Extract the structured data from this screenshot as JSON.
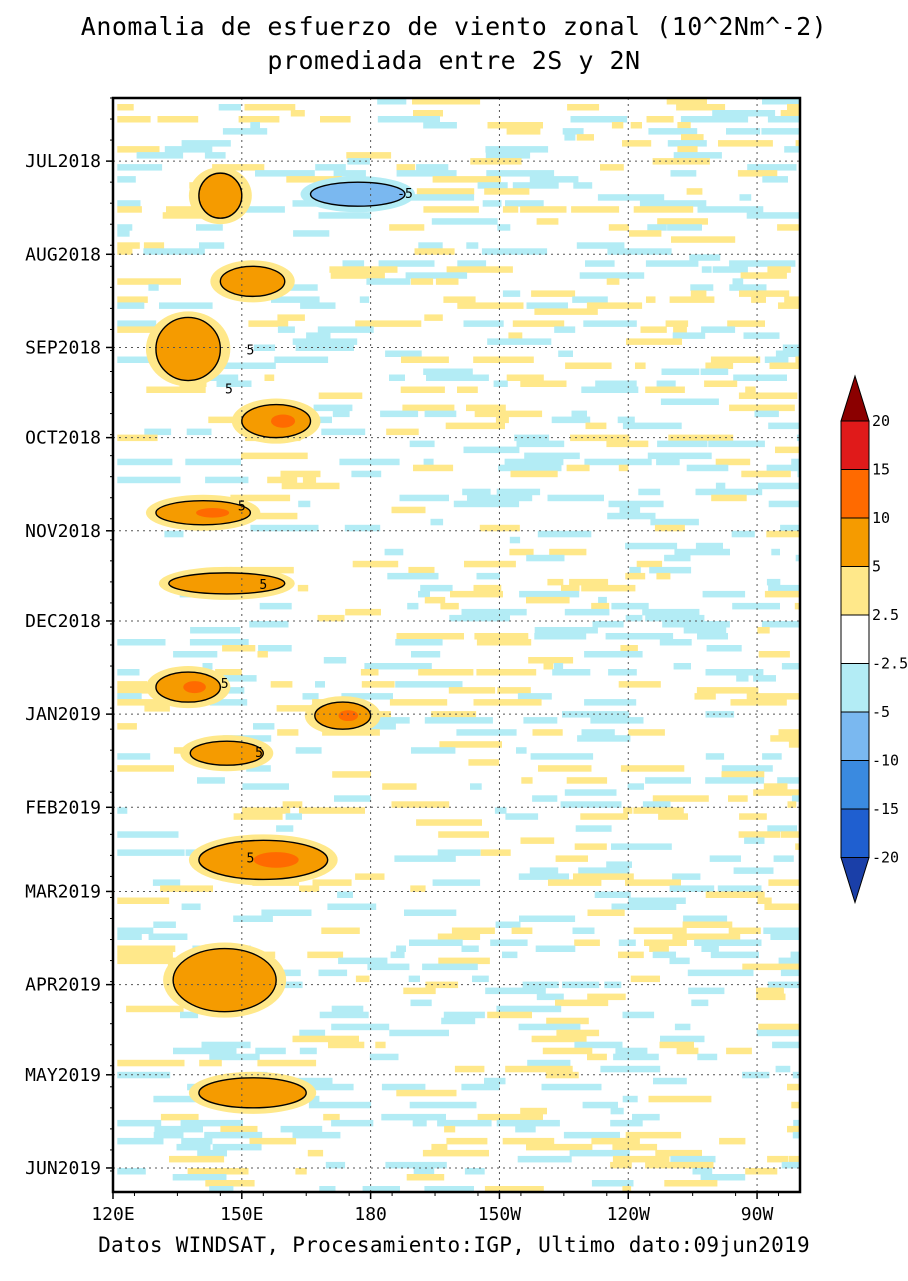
{
  "chart_data": {
    "type": "heatmap",
    "title": "Anomalia de esfuerzo de viento zonal (10^2Nm^-2)",
    "subtitle": "promediada entre 2S y 2N",
    "footer": "Datos WINDSAT, Procesamiento:IGP, Ultimo dato:09jun2019",
    "x_ticks": [
      {
        "label": "120E",
        "lon": 120
      },
      {
        "label": "150E",
        "lon": 150
      },
      {
        "label": "180",
        "lon": 180
      },
      {
        "label": "150W",
        "lon": 210
      },
      {
        "label": "120W",
        "lon": 240
      },
      {
        "label": "90W",
        "lon": 270
      }
    ],
    "x_range": [
      120,
      280
    ],
    "y_ticks": [
      {
        "label": "JUL2018",
        "date": "2018-07-01"
      },
      {
        "label": "AUG2018",
        "date": "2018-08-01"
      },
      {
        "label": "SEP2018",
        "date": "2018-09-01"
      },
      {
        "label": "OCT2018",
        "date": "2018-10-01"
      },
      {
        "label": "NOV2018",
        "date": "2018-11-01"
      },
      {
        "label": "DEC2018",
        "date": "2018-12-01"
      },
      {
        "label": "JAN2019",
        "date": "2019-01-01"
      },
      {
        "label": "FEB2019",
        "date": "2019-02-01"
      },
      {
        "label": "MAR2019",
        "date": "2019-03-01"
      },
      {
        "label": "APR2019",
        "date": "2019-04-01"
      },
      {
        "label": "MAY2019",
        "date": "2019-05-01"
      },
      {
        "label": "JUN2019",
        "date": "2019-06-01"
      }
    ],
    "y_range": [
      "2018-06-10",
      "2019-06-09"
    ],
    "y_direction": "time increases downward",
    "grid": true,
    "colorbar": {
      "placement": "right",
      "levels": [
        "20",
        "15",
        "10",
        "5",
        "2.5",
        "-2.5",
        "-5",
        "-10",
        "-15",
        "-20"
      ],
      "colors": [
        "#8b0000",
        "#e01a1a",
        "#ff6a00",
        "#f59b00",
        "#ffe88a",
        "#ffffff",
        "#b3ecf5",
        "#7ab8f0",
        "#3a8ae0",
        "#1f5fd0",
        "#1a3fa8"
      ]
    },
    "contour_labels": [
      "-5",
      "5",
      "5",
      "5",
      "5",
      "5",
      "5",
      "5",
      "5"
    ],
    "anomalies": [
      {
        "lon": [
          140,
          150
        ],
        "from": "2018-07-05",
        "to": "2018-07-20",
        "value": 5
      },
      {
        "lon": [
          166,
          188
        ],
        "from": "2018-07-08",
        "to": "2018-07-16",
        "value": -5
      },
      {
        "lon": [
          145,
          160
        ],
        "from": "2018-08-05",
        "to": "2018-08-15",
        "value": 5
      },
      {
        "lon": [
          130,
          145
        ],
        "from": "2018-08-22",
        "to": "2018-09-12",
        "value": 5
      },
      {
        "lon": [
          150,
          166
        ],
        "from": "2018-09-20",
        "to": "2018-10-01",
        "value": 10
      },
      {
        "lon": [
          130,
          152
        ],
        "from": "2018-10-22",
        "to": "2018-10-30",
        "value": 10
      },
      {
        "lon": [
          133,
          160
        ],
        "from": "2018-11-15",
        "to": "2018-11-22",
        "value": 5
      },
      {
        "lon": [
          130,
          145
        ],
        "from": "2018-12-18",
        "to": "2018-12-28",
        "value": 10
      },
      {
        "lon": [
          167,
          180
        ],
        "from": "2018-12-28",
        "to": "2019-01-06",
        "value": 10
      },
      {
        "lon": [
          138,
          155
        ],
        "from": "2019-01-10",
        "to": "2019-01-18",
        "value": 5
      },
      {
        "lon": [
          140,
          170
        ],
        "from": "2019-02-12",
        "to": "2019-02-25",
        "value": 10
      },
      {
        "lon": [
          134,
          158
        ],
        "from": "2019-03-20",
        "to": "2019-04-10",
        "value": 5
      },
      {
        "lon": [
          140,
          165
        ],
        "from": "2019-05-02",
        "to": "2019-05-12",
        "value": 5
      }
    ]
  }
}
